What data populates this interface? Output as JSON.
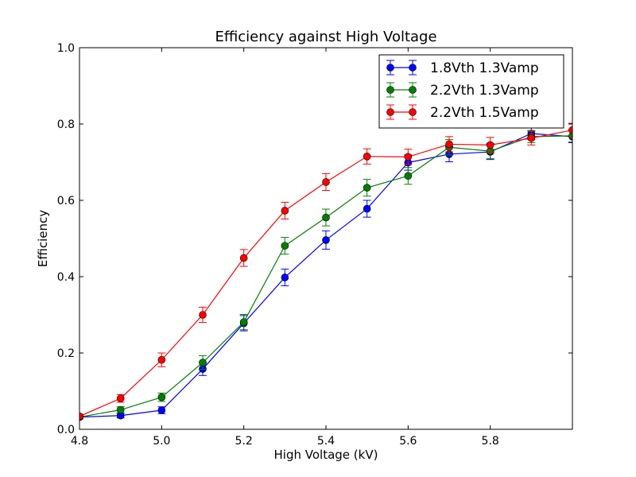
{
  "chart_data": {
    "type": "line",
    "title": "Efficiency against High Voltage",
    "xlabel": "High Voltage (kV)",
    "ylabel": "Efficiency",
    "xlim": [
      4.8,
      6.0
    ],
    "ylim": [
      0.0,
      1.0
    ],
    "xticks": [
      "4.8",
      "5.0",
      "5.2",
      "5.4",
      "5.6",
      "5.8"
    ],
    "yticks": [
      "0.0",
      "0.2",
      "0.4",
      "0.6",
      "0.8",
      "1.0"
    ],
    "grid": false,
    "legend_position": "top-right",
    "series": [
      {
        "name": "1.8Vth 1.3Vamp",
        "color": "#0000ff",
        "x": [
          4.8,
          4.9,
          5.0,
          5.1,
          5.2,
          5.3,
          5.4,
          5.5,
          5.6,
          5.7,
          5.8,
          5.9,
          6.0
        ],
        "y": [
          0.032,
          0.036,
          0.05,
          0.158,
          0.278,
          0.398,
          0.496,
          0.578,
          0.699,
          0.721,
          0.727,
          0.775,
          0.767
        ],
        "err": [
          0.005,
          0.006,
          0.009,
          0.017,
          0.02,
          0.022,
          0.024,
          0.022,
          0.02,
          0.02,
          0.02,
          0.016,
          0.016
        ]
      },
      {
        "name": "2.2Vth 1.3Vamp",
        "color": "#008000",
        "x": [
          4.8,
          4.9,
          5.0,
          5.1,
          5.2,
          5.3,
          5.4,
          5.5,
          5.6,
          5.7,
          5.8,
          5.9,
          6.0
        ],
        "y": [
          0.032,
          0.051,
          0.084,
          0.175,
          0.281,
          0.481,
          0.555,
          0.633,
          0.664,
          0.739,
          0.729,
          0.767,
          0.769
        ],
        "err": [
          0.005,
          0.008,
          0.011,
          0.018,
          0.02,
          0.022,
          0.022,
          0.022,
          0.022,
          0.02,
          0.02,
          0.016,
          0.016
        ]
      },
      {
        "name": "2.2Vth 1.5Vamp",
        "color": "#ff0000",
        "x": [
          4.8,
          4.9,
          5.0,
          5.1,
          5.2,
          5.3,
          5.4,
          5.5,
          5.6,
          5.7,
          5.8,
          5.9,
          6.0
        ],
        "y": [
          0.034,
          0.081,
          0.182,
          0.3,
          0.449,
          0.573,
          0.648,
          0.715,
          0.714,
          0.747,
          0.745,
          0.763,
          0.784
        ],
        "err": [
          0.005,
          0.01,
          0.018,
          0.02,
          0.022,
          0.022,
          0.022,
          0.02,
          0.02,
          0.02,
          0.02,
          0.018,
          0.018
        ]
      }
    ]
  }
}
